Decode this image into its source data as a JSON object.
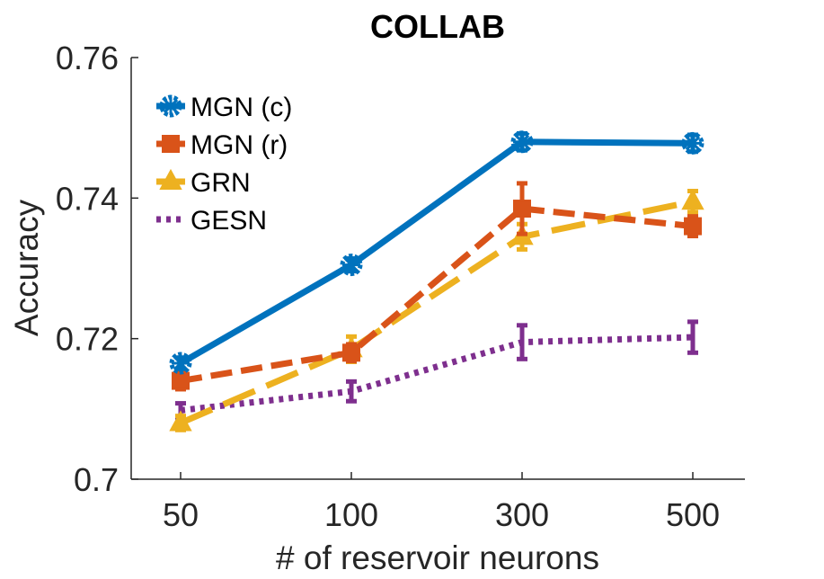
{
  "chart_data": {
    "type": "line",
    "title": "COLLAB",
    "xlabel": "# of reservoir neurons",
    "ylabel": "Accuracy",
    "categories": [
      "50",
      "100",
      "300",
      "500"
    ],
    "ylim": [
      0.7,
      0.76
    ],
    "yticks": [
      0.7,
      0.72,
      0.74,
      0.76
    ],
    "ytick_labels": [
      "0.7",
      "0.72",
      "0.74",
      "0.76"
    ],
    "legend_position": "top-left",
    "series": [
      {
        "name": "MGN (c)",
        "color": "#0072BD",
        "style": "solid",
        "marker": "star-circle",
        "values": [
          0.7165,
          0.7305,
          0.748,
          0.7478
        ],
        "errors": [
          0.0008,
          0.0009,
          0.0012,
          0.0012
        ]
      },
      {
        "name": "MGN (r)",
        "color": "#D95319",
        "style": "dashed",
        "marker": "square",
        "values": [
          0.714,
          0.718,
          0.7385,
          0.736
        ],
        "errors": [
          0.0012,
          0.0012,
          0.0036,
          0.0014
        ]
      },
      {
        "name": "GRN",
        "color": "#EDB120",
        "style": "dashed-long",
        "marker": "triangle",
        "values": [
          0.708,
          0.7185,
          0.7345,
          0.7395
        ],
        "errors": [
          0.001,
          0.0018,
          0.0018,
          0.0015
        ]
      },
      {
        "name": "GESN",
        "color": "#7E2F8E",
        "style": "dotted",
        "marker": "none",
        "values": [
          0.7098,
          0.7125,
          0.7195,
          0.7202
        ],
        "errors": [
          0.001,
          0.0014,
          0.0024,
          0.0022
        ]
      }
    ]
  }
}
